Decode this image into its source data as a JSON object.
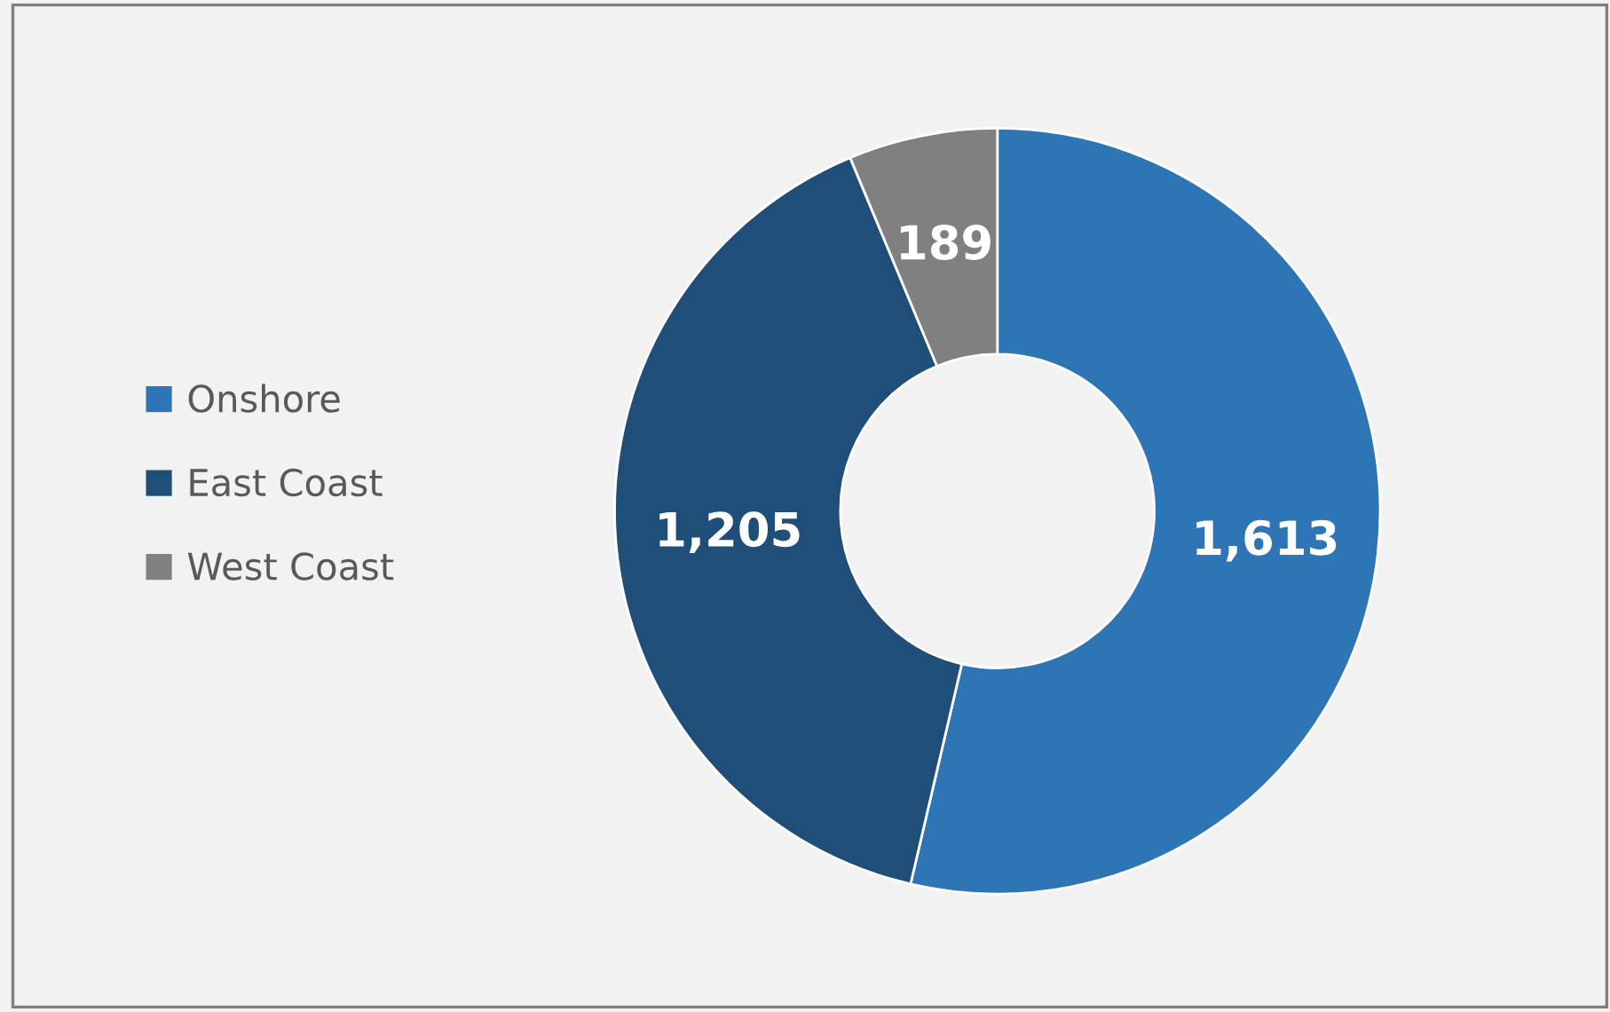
{
  "chart_data": {
    "type": "donut",
    "categories": [
      "Onshore",
      "East Coast",
      "West Coast"
    ],
    "values": [
      1613,
      1205,
      189
    ],
    "colors": [
      "#2e75b6",
      "#1f4e79",
      "#808080"
    ],
    "value_labels": [
      "1,613",
      "1,205",
      "189"
    ],
    "legend": "left"
  }
}
